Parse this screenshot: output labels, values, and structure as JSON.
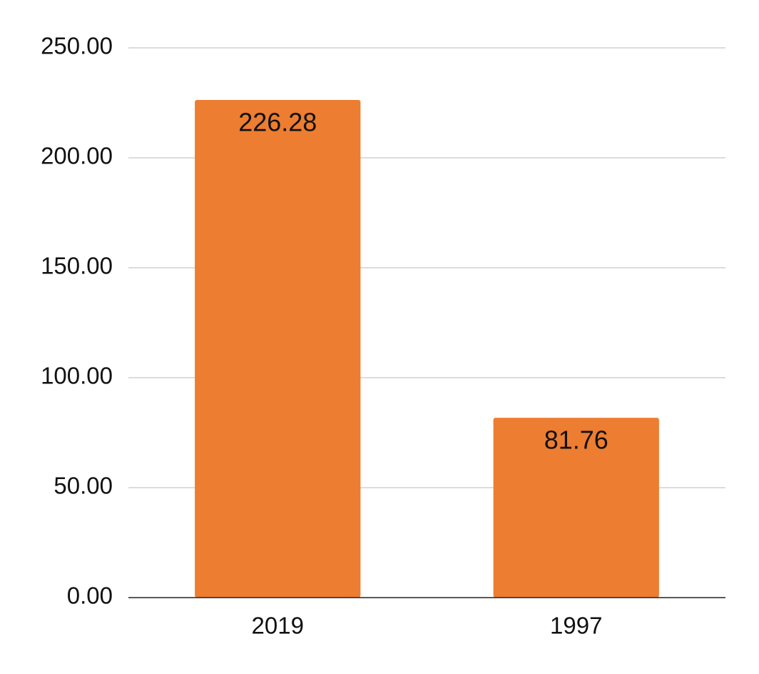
{
  "chart_data": {
    "type": "bar",
    "categories": [
      "2019",
      "1997"
    ],
    "values": [
      226.28,
      81.76
    ],
    "value_labels": [
      "226.28",
      "81.76"
    ],
    "y_ticks": [
      "0.00",
      "50.00",
      "100.00",
      "150.00",
      "200.00",
      "250.00"
    ],
    "ylim": [
      0,
      250
    ],
    "grid": true,
    "legend": "none",
    "colors": {
      "bar": "#ED7D31",
      "grid": "#D0D0D0",
      "axis": "#222222",
      "text": "#111111"
    }
  }
}
